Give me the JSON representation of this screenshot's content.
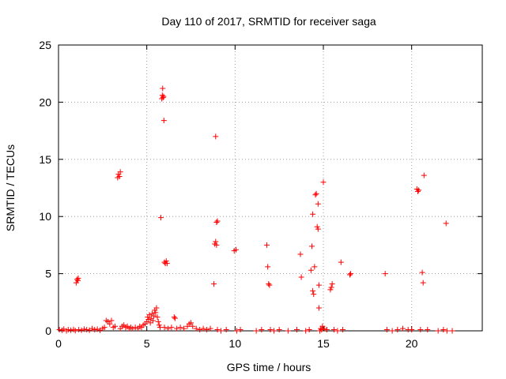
{
  "chart_data": {
    "type": "scatter",
    "title": "Day 110 of 2017, SRMTID for receiver saga",
    "xlabel": "GPS time / hours",
    "ylabel": "SRMTID / TECUs",
    "xlim": [
      0,
      24
    ],
    "ylim": [
      0,
      25
    ],
    "xticks": [
      0,
      5,
      10,
      15,
      20
    ],
    "yticks": [
      0,
      5,
      10,
      15,
      20,
      25
    ],
    "grid": true,
    "marker": "plus",
    "color": "#ff0000",
    "series": [
      {
        "name": "SRMTID",
        "points": [
          [
            0.05,
            0.1
          ],
          [
            0.2,
            0.05
          ],
          [
            0.3,
            0.15
          ],
          [
            0.45,
            0.0
          ],
          [
            0.55,
            0.1
          ],
          [
            0.7,
            0.05
          ],
          [
            0.85,
            0.12
          ],
          [
            0.95,
            0.02
          ],
          [
            1.0,
            4.2
          ],
          [
            1.05,
            4.5
          ],
          [
            1.1,
            4.4
          ],
          [
            1.12,
            4.6
          ],
          [
            1.15,
            0.1
          ],
          [
            1.3,
            0.05
          ],
          [
            1.45,
            0.15
          ],
          [
            1.6,
            0.1
          ],
          [
            1.75,
            0.05
          ],
          [
            1.9,
            0.2
          ],
          [
            2.05,
            0.1
          ],
          [
            2.2,
            0.15
          ],
          [
            2.35,
            0.05
          ],
          [
            2.5,
            0.2
          ],
          [
            2.6,
            0.3
          ],
          [
            2.7,
            0.9
          ],
          [
            2.8,
            0.8
          ],
          [
            2.9,
            0.6
          ],
          [
            3.0,
            0.9
          ],
          [
            3.1,
            0.3
          ],
          [
            3.2,
            0.4
          ],
          [
            3.35,
            13.4
          ],
          [
            3.4,
            13.7
          ],
          [
            3.45,
            13.5
          ],
          [
            3.5,
            13.9
          ],
          [
            3.5,
            0.2
          ],
          [
            3.6,
            0.4
          ],
          [
            3.7,
            0.5
          ],
          [
            3.8,
            0.3
          ],
          [
            3.9,
            0.4
          ],
          [
            4.0,
            0.2
          ],
          [
            4.1,
            0.3
          ],
          [
            4.2,
            0.2
          ],
          [
            4.35,
            0.3
          ],
          [
            4.5,
            0.2
          ],
          [
            4.6,
            0.4
          ],
          [
            4.7,
            0.3
          ],
          [
            4.8,
            0.5
          ],
          [
            4.9,
            0.6
          ],
          [
            5.0,
            0.8
          ],
          [
            5.05,
            1.2
          ],
          [
            5.1,
            1.0
          ],
          [
            5.15,
            1.4
          ],
          [
            5.2,
            0.7
          ],
          [
            5.25,
            1.1
          ],
          [
            5.3,
            1.5
          ],
          [
            5.35,
            0.9
          ],
          [
            5.4,
            1.3
          ],
          [
            5.45,
            1.8
          ],
          [
            5.5,
            1.6
          ],
          [
            5.55,
            2.0
          ],
          [
            5.6,
            1.2
          ],
          [
            5.65,
            0.8
          ],
          [
            5.7,
            0.5
          ],
          [
            5.75,
            0.3
          ],
          [
            5.8,
            9.9
          ],
          [
            5.85,
            20.3
          ],
          [
            5.88,
            20.6
          ],
          [
            5.9,
            21.2
          ],
          [
            5.92,
            20.4
          ],
          [
            5.95,
            20.5
          ],
          [
            5.97,
            18.4
          ],
          [
            6.0,
            6.0
          ],
          [
            6.05,
            5.9
          ],
          [
            6.1,
            6.1
          ],
          [
            6.15,
            5.9
          ],
          [
            6.0,
            0.3
          ],
          [
            6.2,
            0.2
          ],
          [
            6.4,
            0.3
          ],
          [
            6.55,
            1.2
          ],
          [
            6.6,
            1.1
          ],
          [
            6.7,
            0.2
          ],
          [
            6.9,
            0.3
          ],
          [
            7.1,
            0.2
          ],
          [
            7.3,
            0.4
          ],
          [
            7.4,
            0.6
          ],
          [
            7.5,
            0.7
          ],
          [
            7.6,
            0.4
          ],
          [
            7.8,
            0.2
          ],
          [
            8.0,
            0.1
          ],
          [
            8.2,
            0.2
          ],
          [
            8.4,
            0.1
          ],
          [
            8.6,
            0.2
          ],
          [
            8.8,
            4.1
          ],
          [
            8.85,
            7.6
          ],
          [
            8.9,
            7.8
          ],
          [
            8.95,
            7.5
          ],
          [
            8.9,
            17.0
          ],
          [
            8.95,
            9.5
          ],
          [
            9.0,
            9.6
          ],
          [
            9.0,
            0.1
          ],
          [
            9.2,
            0.0
          ],
          [
            9.5,
            0.1
          ],
          [
            9.95,
            7.0
          ],
          [
            10.05,
            7.1
          ],
          [
            10.1,
            0.0
          ],
          [
            10.3,
            0.1
          ],
          [
            11.2,
            0.0
          ],
          [
            11.5,
            0.1
          ],
          [
            11.8,
            7.5
          ],
          [
            11.85,
            5.6
          ],
          [
            11.9,
            4.1
          ],
          [
            11.95,
            4.0
          ],
          [
            12.0,
            0.1
          ],
          [
            12.2,
            0.0
          ],
          [
            12.5,
            0.1
          ],
          [
            13.0,
            0.0
          ],
          [
            13.5,
            0.1
          ],
          [
            13.7,
            6.7
          ],
          [
            13.75,
            4.7
          ],
          [
            14.0,
            0.0
          ],
          [
            14.2,
            0.1
          ],
          [
            14.3,
            5.3
          ],
          [
            14.35,
            7.4
          ],
          [
            14.4,
            10.2
          ],
          [
            14.4,
            3.5
          ],
          [
            14.45,
            3.2
          ],
          [
            14.5,
            5.6
          ],
          [
            14.55,
            11.9
          ],
          [
            14.6,
            12.0
          ],
          [
            14.65,
            9.1
          ],
          [
            14.7,
            11.1
          ],
          [
            14.7,
            8.9
          ],
          [
            14.75,
            2.0
          ],
          [
            14.75,
            4.0
          ],
          [
            14.8,
            0.0
          ],
          [
            14.85,
            0.2
          ],
          [
            14.9,
            0.1
          ],
          [
            14.95,
            0.4
          ],
          [
            15.0,
            13.0
          ],
          [
            15.05,
            0.2
          ],
          [
            15.2,
            0.1
          ],
          [
            15.4,
            3.6
          ],
          [
            15.45,
            3.8
          ],
          [
            15.5,
            4.1
          ],
          [
            15.6,
            0.1
          ],
          [
            15.8,
            0.0
          ],
          [
            16.0,
            6.0
          ],
          [
            16.1,
            0.1
          ],
          [
            16.5,
            4.9
          ],
          [
            16.55,
            5.0
          ],
          [
            18.5,
            5.0
          ],
          [
            18.6,
            0.1
          ],
          [
            18.9,
            0.0
          ],
          [
            19.2,
            0.1
          ],
          [
            19.5,
            0.2
          ],
          [
            19.8,
            0.1
          ],
          [
            20.0,
            0.1
          ],
          [
            20.3,
            12.4
          ],
          [
            20.35,
            12.2
          ],
          [
            20.4,
            12.3
          ],
          [
            20.5,
            0.1
          ],
          [
            20.6,
            5.1
          ],
          [
            20.65,
            4.2
          ],
          [
            20.7,
            13.6
          ],
          [
            20.9,
            0.1
          ],
          [
            21.5,
            0.0
          ],
          [
            21.8,
            0.1
          ],
          [
            21.95,
            9.4
          ],
          [
            22.0,
            0.0
          ],
          [
            22.3,
            0.0
          ]
        ]
      }
    ]
  }
}
